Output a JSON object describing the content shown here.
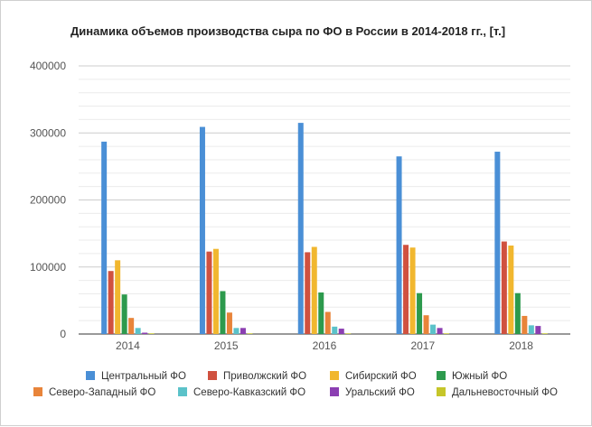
{
  "chart_data": {
    "type": "bar",
    "title": "Динамика объемов производства сыра по ФО в России в 2014-2018 гг., [т.]",
    "categories": [
      "2014",
      "2015",
      "2016",
      "2017",
      "2018"
    ],
    "y_ticks": [
      "0",
      "100000",
      "200000",
      "300000",
      "400000"
    ],
    "ylim": [
      0,
      400000
    ],
    "grid": true,
    "legend_position": "bottom",
    "series": [
      {
        "name": "Центральный ФО",
        "color": "#4a8fd6",
        "values": [
          287000,
          309000,
          315000,
          265000,
          272000
        ]
      },
      {
        "name": "Приволжский ФО",
        "color": "#d0513f",
        "values": [
          94000,
          123000,
          122000,
          133000,
          138000
        ]
      },
      {
        "name": "Сибирский ФО",
        "color": "#f1b72f",
        "values": [
          110000,
          127000,
          130000,
          129000,
          132000
        ]
      },
      {
        "name": "Южный ФО",
        "color": "#2d9a4d",
        "values": [
          59000,
          64000,
          62000,
          61000,
          61000
        ]
      },
      {
        "name": "Северо-Западный ФО",
        "color": "#e8843a",
        "values": [
          24000,
          32000,
          33000,
          28000,
          27000
        ]
      },
      {
        "name": "Северо-Кавказский ФО",
        "color": "#5bc2c9",
        "values": [
          9000,
          9000,
          11000,
          14000,
          13000
        ]
      },
      {
        "name": "Уральский ФО",
        "color": "#8b3fb2",
        "values": [
          2000,
          9000,
          8000,
          9000,
          12000
        ]
      },
      {
        "name": "Дальневосточный ФО",
        "color": "#c6c62a",
        "values": [
          1000,
          1000,
          1000,
          1000,
          1000
        ]
      }
    ]
  }
}
